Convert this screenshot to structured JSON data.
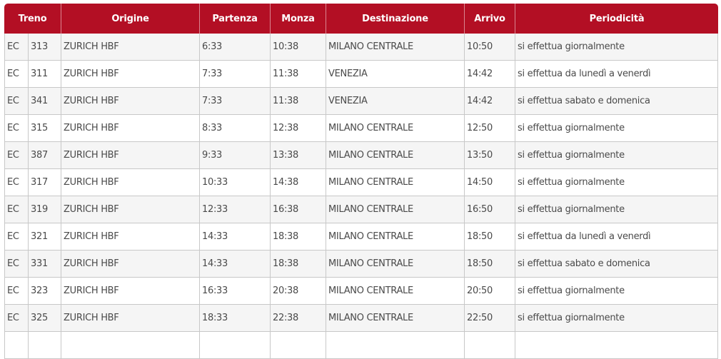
{
  "header": {
    "treno": "Treno",
    "origine": "Origine",
    "partenza": "Partenza",
    "monza": "Monza",
    "destinazione": "Destinazione",
    "arrivo": "Arrivo",
    "periodicita": "Periodicità"
  },
  "rows": [
    {
      "cat": "EC",
      "num": "313",
      "origine": "ZURICH HBF",
      "partenza": "6:33",
      "monza": "10:38",
      "destinazione": "MILANO CENTRALE",
      "arrivo": "10:50",
      "periodicita": "si effettua giornalmente"
    },
    {
      "cat": "EC",
      "num": "311",
      "origine": "ZURICH HBF",
      "partenza": "7:33",
      "monza": "11:38",
      "destinazione": "VENEZIA",
      "arrivo": "14:42",
      "periodicita": "si effettua da lunedì a venerdì"
    },
    {
      "cat": "EC",
      "num": "341",
      "origine": "ZURICH HBF",
      "partenza": "7:33",
      "monza": "11:38",
      "destinazione": "VENEZIA",
      "arrivo": "14:42",
      "periodicita": "si effettua sabato e domenica"
    },
    {
      "cat": "EC",
      "num": "315",
      "origine": "ZURICH HBF",
      "partenza": "8:33",
      "monza": "12:38",
      "destinazione": "MILANO CENTRALE",
      "arrivo": "12:50",
      "periodicita": "si effettua giornalmente"
    },
    {
      "cat": "EC",
      "num": "387",
      "origine": "ZURICH HBF",
      "partenza": "9:33",
      "monza": "13:38",
      "destinazione": "MILANO CENTRALE",
      "arrivo": "13:50",
      "periodicita": "si effettua giornalmente"
    },
    {
      "cat": "EC",
      "num": "317",
      "origine": "ZURICH HBF",
      "partenza": "10:33",
      "monza": "14:38",
      "destinazione": "MILANO CENTRALE",
      "arrivo": "14:50",
      "periodicita": "si effettua giornalmente"
    },
    {
      "cat": "EC",
      "num": "319",
      "origine": "ZURICH HBF",
      "partenza": "12:33",
      "monza": "16:38",
      "destinazione": "MILANO CENTRALE",
      "arrivo": "16:50",
      "periodicita": "si effettua giornalmente"
    },
    {
      "cat": "EC",
      "num": "321",
      "origine": "ZURICH HBF",
      "partenza": "14:33",
      "monza": "18:38",
      "destinazione": "MILANO CENTRALE",
      "arrivo": "18:50",
      "periodicita": "si effettua da lunedì a venerdì"
    },
    {
      "cat": "EC",
      "num": "331",
      "origine": "ZURICH HBF",
      "partenza": "14:33",
      "monza": "18:38",
      "destinazione": "MILANO CENTRALE",
      "arrivo": "18:50",
      "periodicita": "si effettua sabato e domenica"
    },
    {
      "cat": "EC",
      "num": "323",
      "origine": "ZURICH HBF",
      "partenza": "16:33",
      "monza": "20:38",
      "destinazione": "MILANO CENTRALE",
      "arrivo": "20:50",
      "periodicita": "si effettua giornalmente"
    },
    {
      "cat": "EC",
      "num": "325",
      "origine": "ZURICH HBF",
      "partenza": "18:33",
      "monza": "22:38",
      "destinazione": "MILANO CENTRALE",
      "arrivo": "22:50",
      "periodicita": "si effettua giornalmente"
    },
    {
      "cat": "",
      "num": "",
      "origine": "",
      "partenza": "",
      "monza": "",
      "destinazione": "",
      "arrivo": "",
      "periodicita": ""
    }
  ],
  "colors": {
    "header_bg": "#b30f24",
    "header_text": "#ffffff",
    "row_odd": "#f5f5f5",
    "row_even": "#ffffff",
    "cell_text": "#4a4a4a",
    "grid": "#c8c8c8"
  }
}
